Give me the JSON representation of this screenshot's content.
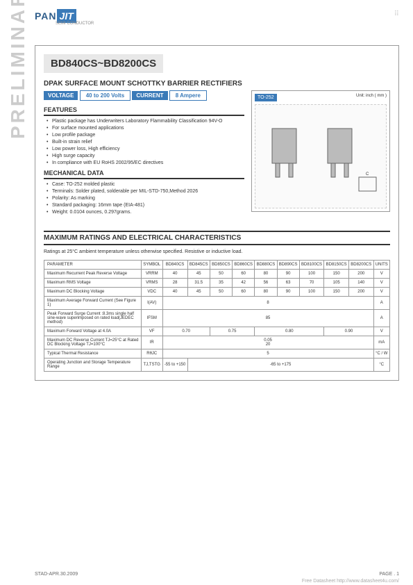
{
  "logo": {
    "part1": "PAN",
    "part2": "JIT",
    "sub": "SEMI\nCONDUCTOR"
  },
  "title": "BD840CS~BD8200CS",
  "subtitle": "DPAK SURFACE MOUNT SCHOTTKY BARRIER RECTIFIERS",
  "voltage_label": "VOLTAGE",
  "voltage_val": "40 to 200  Volts",
  "current_label": "CURRENT",
  "current_val": "8 Ampere",
  "watermark": "PRELIMINARY",
  "features_hdr": "FEATURES",
  "features": [
    "Plastic package has Underwriters Laboratory Flammability Classification 94V-O",
    "For surface mounted applications",
    "Low profile package",
    "Built-in strain relief",
    "Low power loss, High efficiency",
    "High surge capacity",
    "In compliance with EU RoHS 2002/95/EC directives"
  ],
  "mech_hdr": "MECHANICAL DATA",
  "mech": [
    "Case: TO-252 molded plastic",
    "Terminals: Solder plated, solderable per MIL-STD-750,Method 2026",
    "Polarity:  As marking",
    "Standard packaging: 16mm tape (EIA-481)",
    "Weight: 0.0104 ounces, 0.297grams."
  ],
  "pkg_label": "TO-252",
  "pkg_unit": "Unit: inch ( mm )",
  "ratings_hdr": "MAXIMUM RATINGS AND ELECTRICAL CHARACTERISTICS",
  "ratings_note": "Ratings at 25°C ambient temperature unless otherwise specified. Resistive or inductive load.",
  "table": {
    "headers": [
      "PARAMETER",
      "SYMBOL",
      "BD840CS",
      "BD845CS",
      "BD850CS",
      "BD860CS",
      "BD880CS",
      "BD890CS",
      "BD8100CS",
      "BD8150CS",
      "BD8200CS",
      "UNITS"
    ],
    "rows": [
      {
        "param": "Maximum Recurrent Peak Reverse Voltage",
        "sym": "VRRM",
        "vals": [
          "40",
          "45",
          "50",
          "60",
          "80",
          "90",
          "100",
          "150",
          "200"
        ],
        "unit": "V"
      },
      {
        "param": "Maximum RMS Voltage",
        "sym": "VRMS",
        "vals": [
          "28",
          "31.5",
          "35",
          "42",
          "56",
          "63",
          "70",
          "105",
          "140"
        ],
        "unit": "V"
      },
      {
        "param": "Maximum DC Blocking Voltage",
        "sym": "VDC",
        "vals": [
          "40",
          "45",
          "50",
          "60",
          "80",
          "90",
          "100",
          "150",
          "200"
        ],
        "unit": "V"
      },
      {
        "param": "Maximum Average Forward Current  (See Figure 1)",
        "sym": "I(AV)",
        "span": "8",
        "unit": "A"
      },
      {
        "param": "Peak Forward Surge Current :8.3ms single half sine-wave superimposed on rated load(JEDEC method)",
        "sym": "IFSM",
        "span": "85",
        "unit": "A"
      },
      {
        "param": "Maximum Forward Voltage at  4.0A",
        "sym": "VF",
        "groups": [
          [
            "0.70",
            2
          ],
          [
            "0.75",
            2
          ],
          [
            "0.80",
            3
          ],
          [
            "0.90",
            2
          ]
        ],
        "unit": "V"
      },
      {
        "param": "Maximum DC Reverse Current TJ=25°C\nat Rated DC Blocking Voltage TJ=100°C",
        "sym": "IR",
        "span": "0.05\n20",
        "unit": "mA"
      },
      {
        "param": "Typical Thermal Resistance",
        "sym": "RθJC",
        "span": "5",
        "unit": "°C / W"
      },
      {
        "param": "Operating Junction and Storage Temperature Range",
        "sym": "TJ,TSTG",
        "first": "-55 to +150",
        "rest": "-65 to +175",
        "unit": "°C"
      }
    ]
  },
  "footer_left": "STAD-APR.30.2009",
  "footer_right": "PAGE .  1",
  "footer_link": "Free Datasheet http://www.datasheet4u.com/"
}
